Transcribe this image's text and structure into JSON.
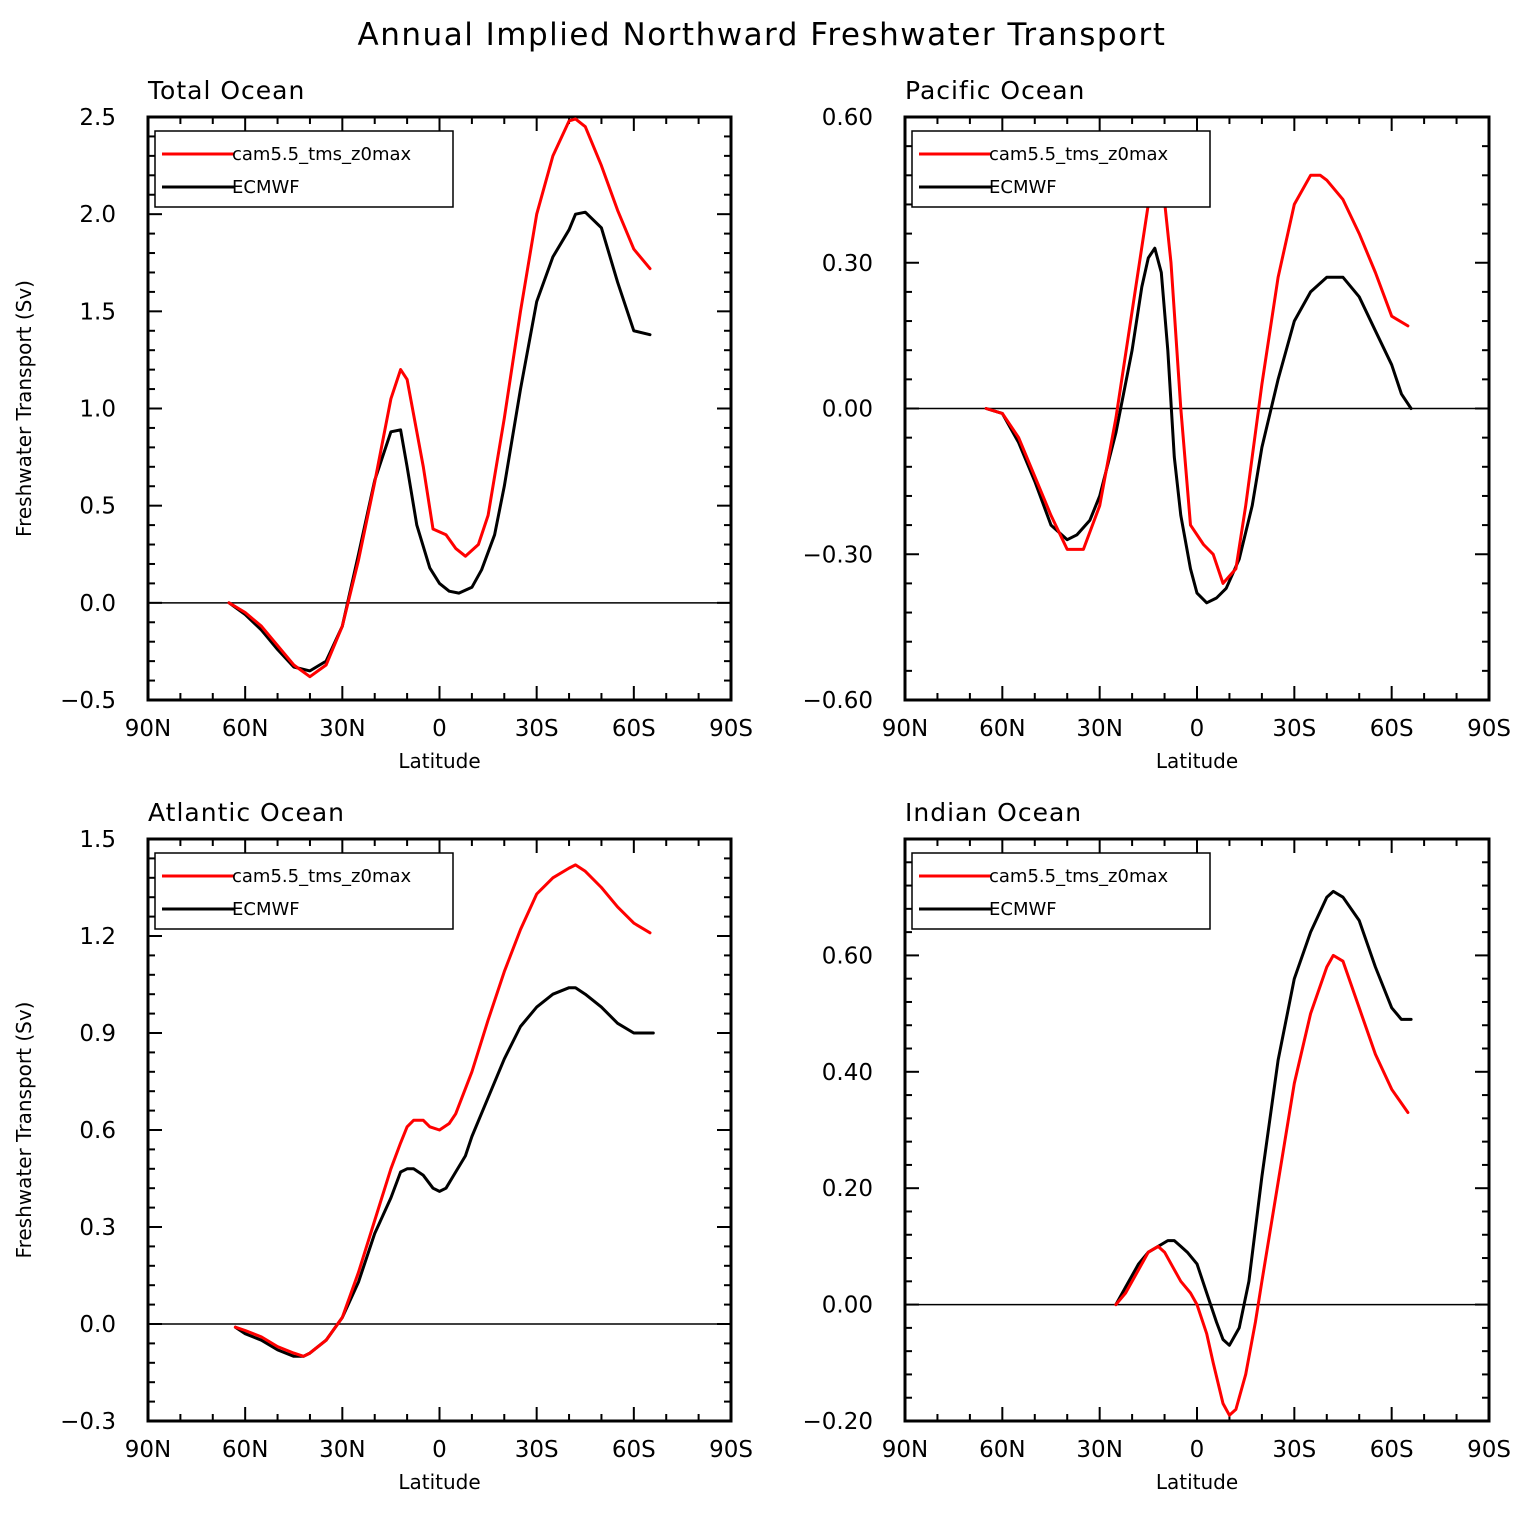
{
  "figure": {
    "title": "Annual Implied Northward Freshwater Transport"
  },
  "colors": {
    "model": "#ff0000",
    "obs": "#000000",
    "zero_line": "#000000"
  },
  "chart_data": [
    {
      "type": "line",
      "title": "Total Ocean",
      "xlabel": "Latitude",
      "ylabel": "Freshwater Transport (Sv)",
      "xlim": [
        90,
        -90
      ],
      "ylim": [
        -0.5,
        2.5
      ],
      "xticks": [
        90,
        60,
        30,
        0,
        -30,
        -60,
        -90
      ],
      "xtick_labels": [
        "90N",
        "60N",
        "30N",
        "0",
        "30S",
        "60S",
        "90S"
      ],
      "yticks": [
        -0.5,
        0.0,
        0.5,
        1.0,
        1.5,
        2.0,
        2.5
      ],
      "ytick_labels": [
        "−0.5",
        "0.0",
        "0.5",
        "1.0",
        "1.5",
        "2.0",
        "2.5"
      ],
      "legend_position": "top-left",
      "series": [
        {
          "name": "cam5.5_tms_z0max",
          "x": [
            65,
            60,
            55,
            50,
            45,
            40,
            35,
            30,
            25,
            20,
            15,
            12,
            10,
            5,
            2,
            -2,
            -5,
            -8,
            -12,
            -15,
            -20,
            -25,
            -30,
            -35,
            -40,
            -42,
            -45,
            -50,
            -55,
            -60,
            -65
          ],
          "y": [
            0.0,
            -0.05,
            -0.12,
            -0.22,
            -0.32,
            -0.38,
            -0.32,
            -0.12,
            0.22,
            0.62,
            1.05,
            1.2,
            1.15,
            0.7,
            0.38,
            0.35,
            0.28,
            0.24,
            0.3,
            0.45,
            0.95,
            1.5,
            2.0,
            2.3,
            2.48,
            2.49,
            2.45,
            2.25,
            2.02,
            1.82,
            1.72
          ]
        },
        {
          "name": "ECMWF",
          "x": [
            65,
            60,
            55,
            50,
            45,
            40,
            35,
            30,
            25,
            20,
            15,
            12,
            10,
            7,
            3,
            0,
            -3,
            -6,
            -10,
            -13,
            -17,
            -20,
            -25,
            -30,
            -35,
            -40,
            -42,
            -45,
            -50,
            -55,
            -60,
            -65
          ],
          "y": [
            0.0,
            -0.06,
            -0.14,
            -0.24,
            -0.33,
            -0.35,
            -0.3,
            -0.12,
            0.25,
            0.63,
            0.88,
            0.89,
            0.7,
            0.4,
            0.18,
            0.1,
            0.06,
            0.05,
            0.08,
            0.17,
            0.35,
            0.6,
            1.1,
            1.55,
            1.78,
            1.92,
            2.0,
            2.01,
            1.93,
            1.65,
            1.4,
            1.38
          ]
        }
      ]
    },
    {
      "type": "line",
      "title": "Pacific Ocean",
      "xlabel": "Latitude",
      "ylabel": "",
      "xlim": [
        90,
        -90
      ],
      "ylim": [
        -0.6,
        0.6
      ],
      "xticks": [
        90,
        60,
        30,
        0,
        -30,
        -60,
        -90
      ],
      "xtick_labels": [
        "90N",
        "60N",
        "30N",
        "0",
        "30S",
        "60S",
        "90S"
      ],
      "yticks": [
        -0.6,
        -0.3,
        0.0,
        0.3,
        0.6
      ],
      "ytick_labels": [
        "−0.60",
        "−0.30",
        "0.00",
        "0.30",
        "0.60"
      ],
      "legend_position": "top-left",
      "series": [
        {
          "name": "cam5.5_tms_z0max",
          "x": [
            65,
            60,
            55,
            50,
            45,
            40,
            35,
            30,
            25,
            20,
            15,
            13,
            11,
            8,
            5,
            2,
            -2,
            -5,
            -8,
            -12,
            -15,
            -20,
            -25,
            -30,
            -35,
            -38,
            -40,
            -45,
            -50,
            -55,
            -60,
            -65
          ],
          "y": [
            0.0,
            -0.01,
            -0.06,
            -0.14,
            -0.22,
            -0.29,
            -0.29,
            -0.2,
            -0.02,
            0.2,
            0.42,
            0.49,
            0.49,
            0.3,
            0.0,
            -0.24,
            -0.28,
            -0.3,
            -0.36,
            -0.33,
            -0.2,
            0.05,
            0.27,
            0.42,
            0.48,
            0.48,
            0.47,
            0.43,
            0.36,
            0.28,
            0.19,
            0.17
          ]
        },
        {
          "name": "ECMWF",
          "x": [
            65,
            60,
            55,
            50,
            45,
            40,
            37,
            33,
            30,
            25,
            20,
            17,
            15,
            13,
            11,
            9,
            7,
            5,
            2,
            0,
            -3,
            -6,
            -9,
            -13,
            -17,
            -20,
            -25,
            -30,
            -35,
            -40,
            -45,
            -50,
            -55,
            -60,
            -63,
            -66
          ],
          "y": [
            0.0,
            -0.01,
            -0.07,
            -0.15,
            -0.24,
            -0.27,
            -0.26,
            -0.23,
            -0.18,
            -0.05,
            0.12,
            0.25,
            0.31,
            0.33,
            0.28,
            0.12,
            -0.1,
            -0.22,
            -0.33,
            -0.38,
            -0.4,
            -0.39,
            -0.37,
            -0.31,
            -0.2,
            -0.08,
            0.06,
            0.18,
            0.24,
            0.27,
            0.27,
            0.23,
            0.16,
            0.09,
            0.03,
            0.0
          ]
        }
      ]
    },
    {
      "type": "line",
      "title": "Atlantic Ocean",
      "xlabel": "Latitude",
      "ylabel": "Freshwater Transport (Sv)",
      "xlim": [
        90,
        -90
      ],
      "ylim": [
        -0.3,
        1.5
      ],
      "xticks": [
        90,
        60,
        30,
        0,
        -30,
        -60,
        -90
      ],
      "xtick_labels": [
        "90N",
        "60N",
        "30N",
        "0",
        "30S",
        "60S",
        "90S"
      ],
      "yticks": [
        -0.3,
        0.0,
        0.3,
        0.6,
        0.9,
        1.2,
        1.5
      ],
      "ytick_labels": [
        "−0.3",
        "0.0",
        "0.3",
        "0.6",
        "0.9",
        "1.2",
        "1.5"
      ],
      "legend_position": "top-left",
      "series": [
        {
          "name": "cam5.5_tms_z0max",
          "x": [
            63,
            60,
            55,
            50,
            45,
            42,
            40,
            35,
            30,
            25,
            20,
            15,
            12,
            10,
            8,
            5,
            3,
            0,
            -3,
            -5,
            -10,
            -15,
            -20,
            -25,
            -30,
            -35,
            -40,
            -42,
            -45,
            -50,
            -55,
            -60,
            -65
          ],
          "y": [
            -0.01,
            -0.02,
            -0.04,
            -0.07,
            -0.09,
            -0.1,
            -0.09,
            -0.05,
            0.02,
            0.16,
            0.32,
            0.48,
            0.56,
            0.61,
            0.63,
            0.63,
            0.61,
            0.6,
            0.62,
            0.65,
            0.78,
            0.94,
            1.09,
            1.22,
            1.33,
            1.38,
            1.41,
            1.42,
            1.4,
            1.35,
            1.29,
            1.24,
            1.21
          ]
        },
        {
          "name": "ECMWF",
          "x": [
            63,
            60,
            55,
            50,
            45,
            42,
            40,
            35,
            30,
            25,
            20,
            15,
            12,
            10,
            8,
            5,
            2,
            0,
            -2,
            -5,
            -8,
            -10,
            -15,
            -20,
            -25,
            -30,
            -35,
            -40,
            -42,
            -45,
            -50,
            -55,
            -60,
            -66
          ],
          "y": [
            -0.01,
            -0.03,
            -0.05,
            -0.08,
            -0.1,
            -0.1,
            -0.09,
            -0.05,
            0.02,
            0.13,
            0.28,
            0.39,
            0.47,
            0.48,
            0.48,
            0.46,
            0.42,
            0.41,
            0.42,
            0.47,
            0.52,
            0.58,
            0.7,
            0.82,
            0.92,
            0.98,
            1.02,
            1.04,
            1.04,
            1.02,
            0.98,
            0.93,
            0.9,
            0.9
          ]
        }
      ]
    },
    {
      "type": "line",
      "title": "Indian Ocean",
      "xlabel": "Latitude",
      "ylabel": "",
      "xlim": [
        90,
        -90
      ],
      "ylim": [
        -0.2,
        0.8
      ],
      "xticks": [
        90,
        60,
        30,
        0,
        -30,
        -60,
        -90
      ],
      "xtick_labels": [
        "90N",
        "60N",
        "30N",
        "0",
        "30S",
        "60S",
        "90S"
      ],
      "yticks": [
        -0.2,
        0.0,
        0.2,
        0.4,
        0.6
      ],
      "ytick_labels": [
        "−0.20",
        "0.00",
        "0.20",
        "0.40",
        "0.60"
      ],
      "legend_position": "top-left",
      "series": [
        {
          "name": "cam5.5_tms_z0max",
          "x": [
            25,
            22,
            18,
            15,
            12,
            10,
            7,
            5,
            2,
            0,
            -3,
            -5,
            -8,
            -10,
            -12,
            -15,
            -18,
            -20,
            -25,
            -30,
            -35,
            -40,
            -42,
            -45,
            -50,
            -55,
            -60,
            -65
          ],
          "y": [
            0.0,
            0.02,
            0.06,
            0.09,
            0.1,
            0.09,
            0.06,
            0.04,
            0.02,
            0.0,
            -0.05,
            -0.1,
            -0.17,
            -0.19,
            -0.18,
            -0.12,
            -0.03,
            0.04,
            0.21,
            0.38,
            0.5,
            0.58,
            0.6,
            0.59,
            0.51,
            0.43,
            0.37,
            0.33
          ]
        },
        {
          "name": "ECMWF",
          "x": [
            25,
            22,
            18,
            15,
            12,
            9,
            7,
            5,
            3,
            0,
            -3,
            -6,
            -8,
            -10,
            -13,
            -16,
            -20,
            -25,
            -30,
            -35,
            -40,
            -42,
            -45,
            -50,
            -55,
            -60,
            -63,
            -66
          ],
          "y": [
            0.0,
            0.03,
            0.07,
            0.09,
            0.1,
            0.11,
            0.11,
            0.1,
            0.09,
            0.07,
            0.02,
            -0.03,
            -0.06,
            -0.07,
            -0.04,
            0.04,
            0.22,
            0.42,
            0.56,
            0.64,
            0.7,
            0.71,
            0.7,
            0.66,
            0.58,
            0.51,
            0.49,
            0.49
          ]
        }
      ]
    }
  ]
}
